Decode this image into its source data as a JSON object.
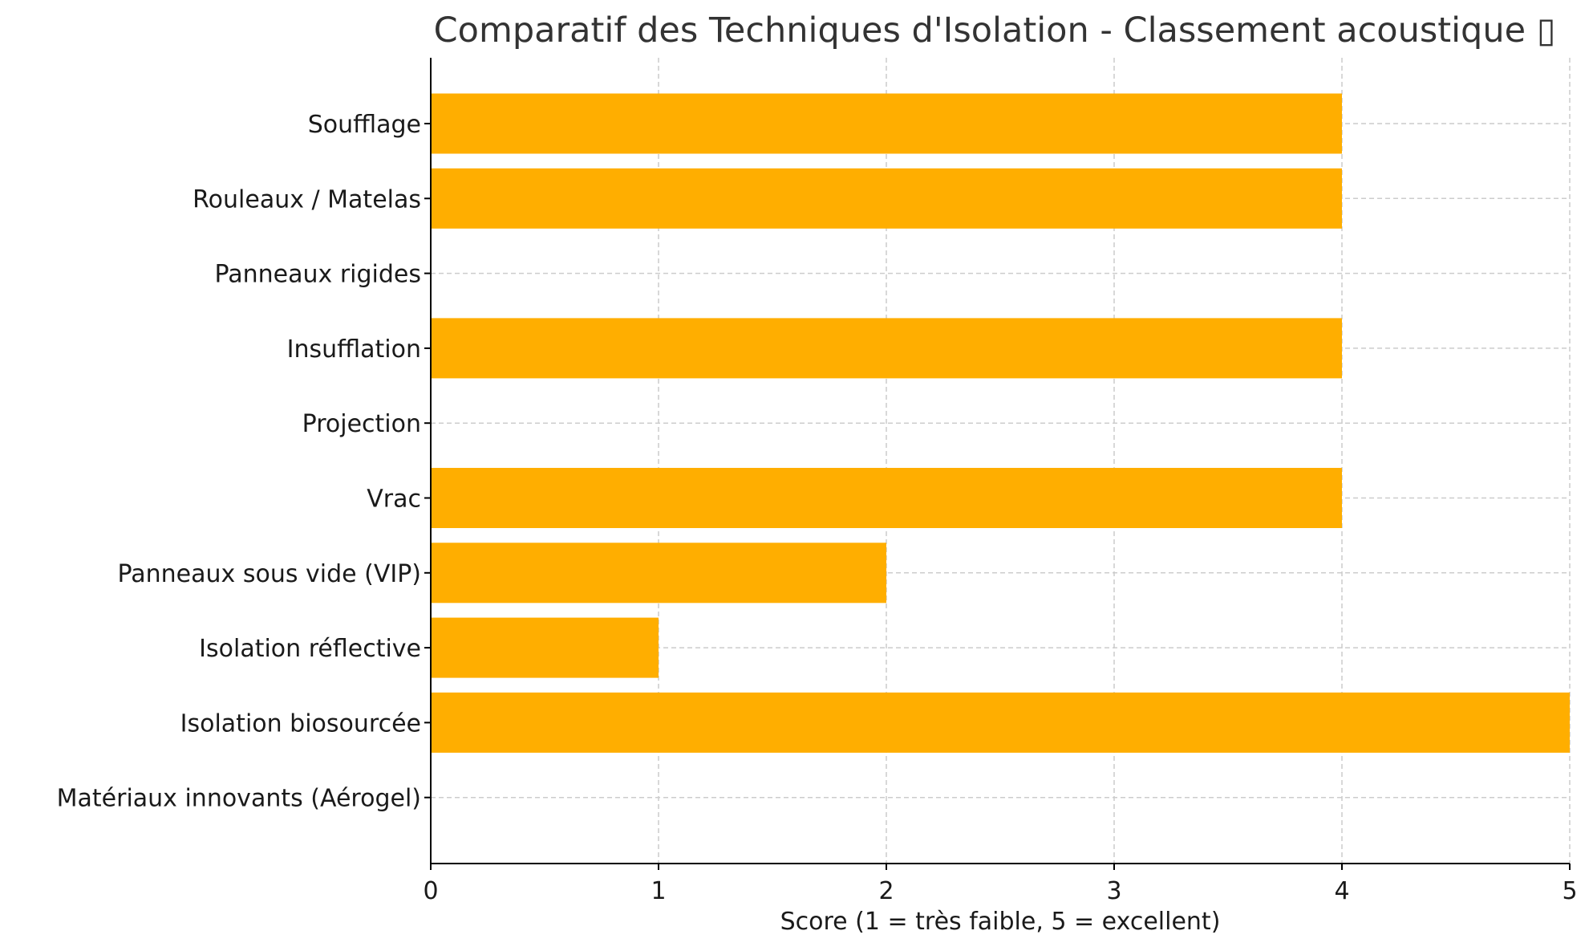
{
  "chart_data": {
    "type": "bar",
    "orientation": "horizontal",
    "title": "Comparatif des Techniques d'Isolation - Classement acoustique ▯",
    "xlabel": "Score (1 = très faible, 5 = excellent)",
    "ylabel": "",
    "xlim": [
      0,
      5
    ],
    "xticks": [
      "0",
      "1",
      "2",
      "3",
      "4",
      "5"
    ],
    "grid": true,
    "bar_color": "#FFAE00",
    "categories": [
      "Soufflage",
      "Rouleaux / Matelas",
      "Panneaux rigides",
      "Insufflation",
      "Projection",
      "Vrac",
      "Panneaux sous vide (VIP)",
      "Isolation réflective",
      "Isolation biosourcée",
      "Matériaux innovants (Aérogel)"
    ],
    "values": [
      4,
      4,
      0,
      4,
      0,
      4,
      2,
      1,
      5,
      0
    ]
  }
}
